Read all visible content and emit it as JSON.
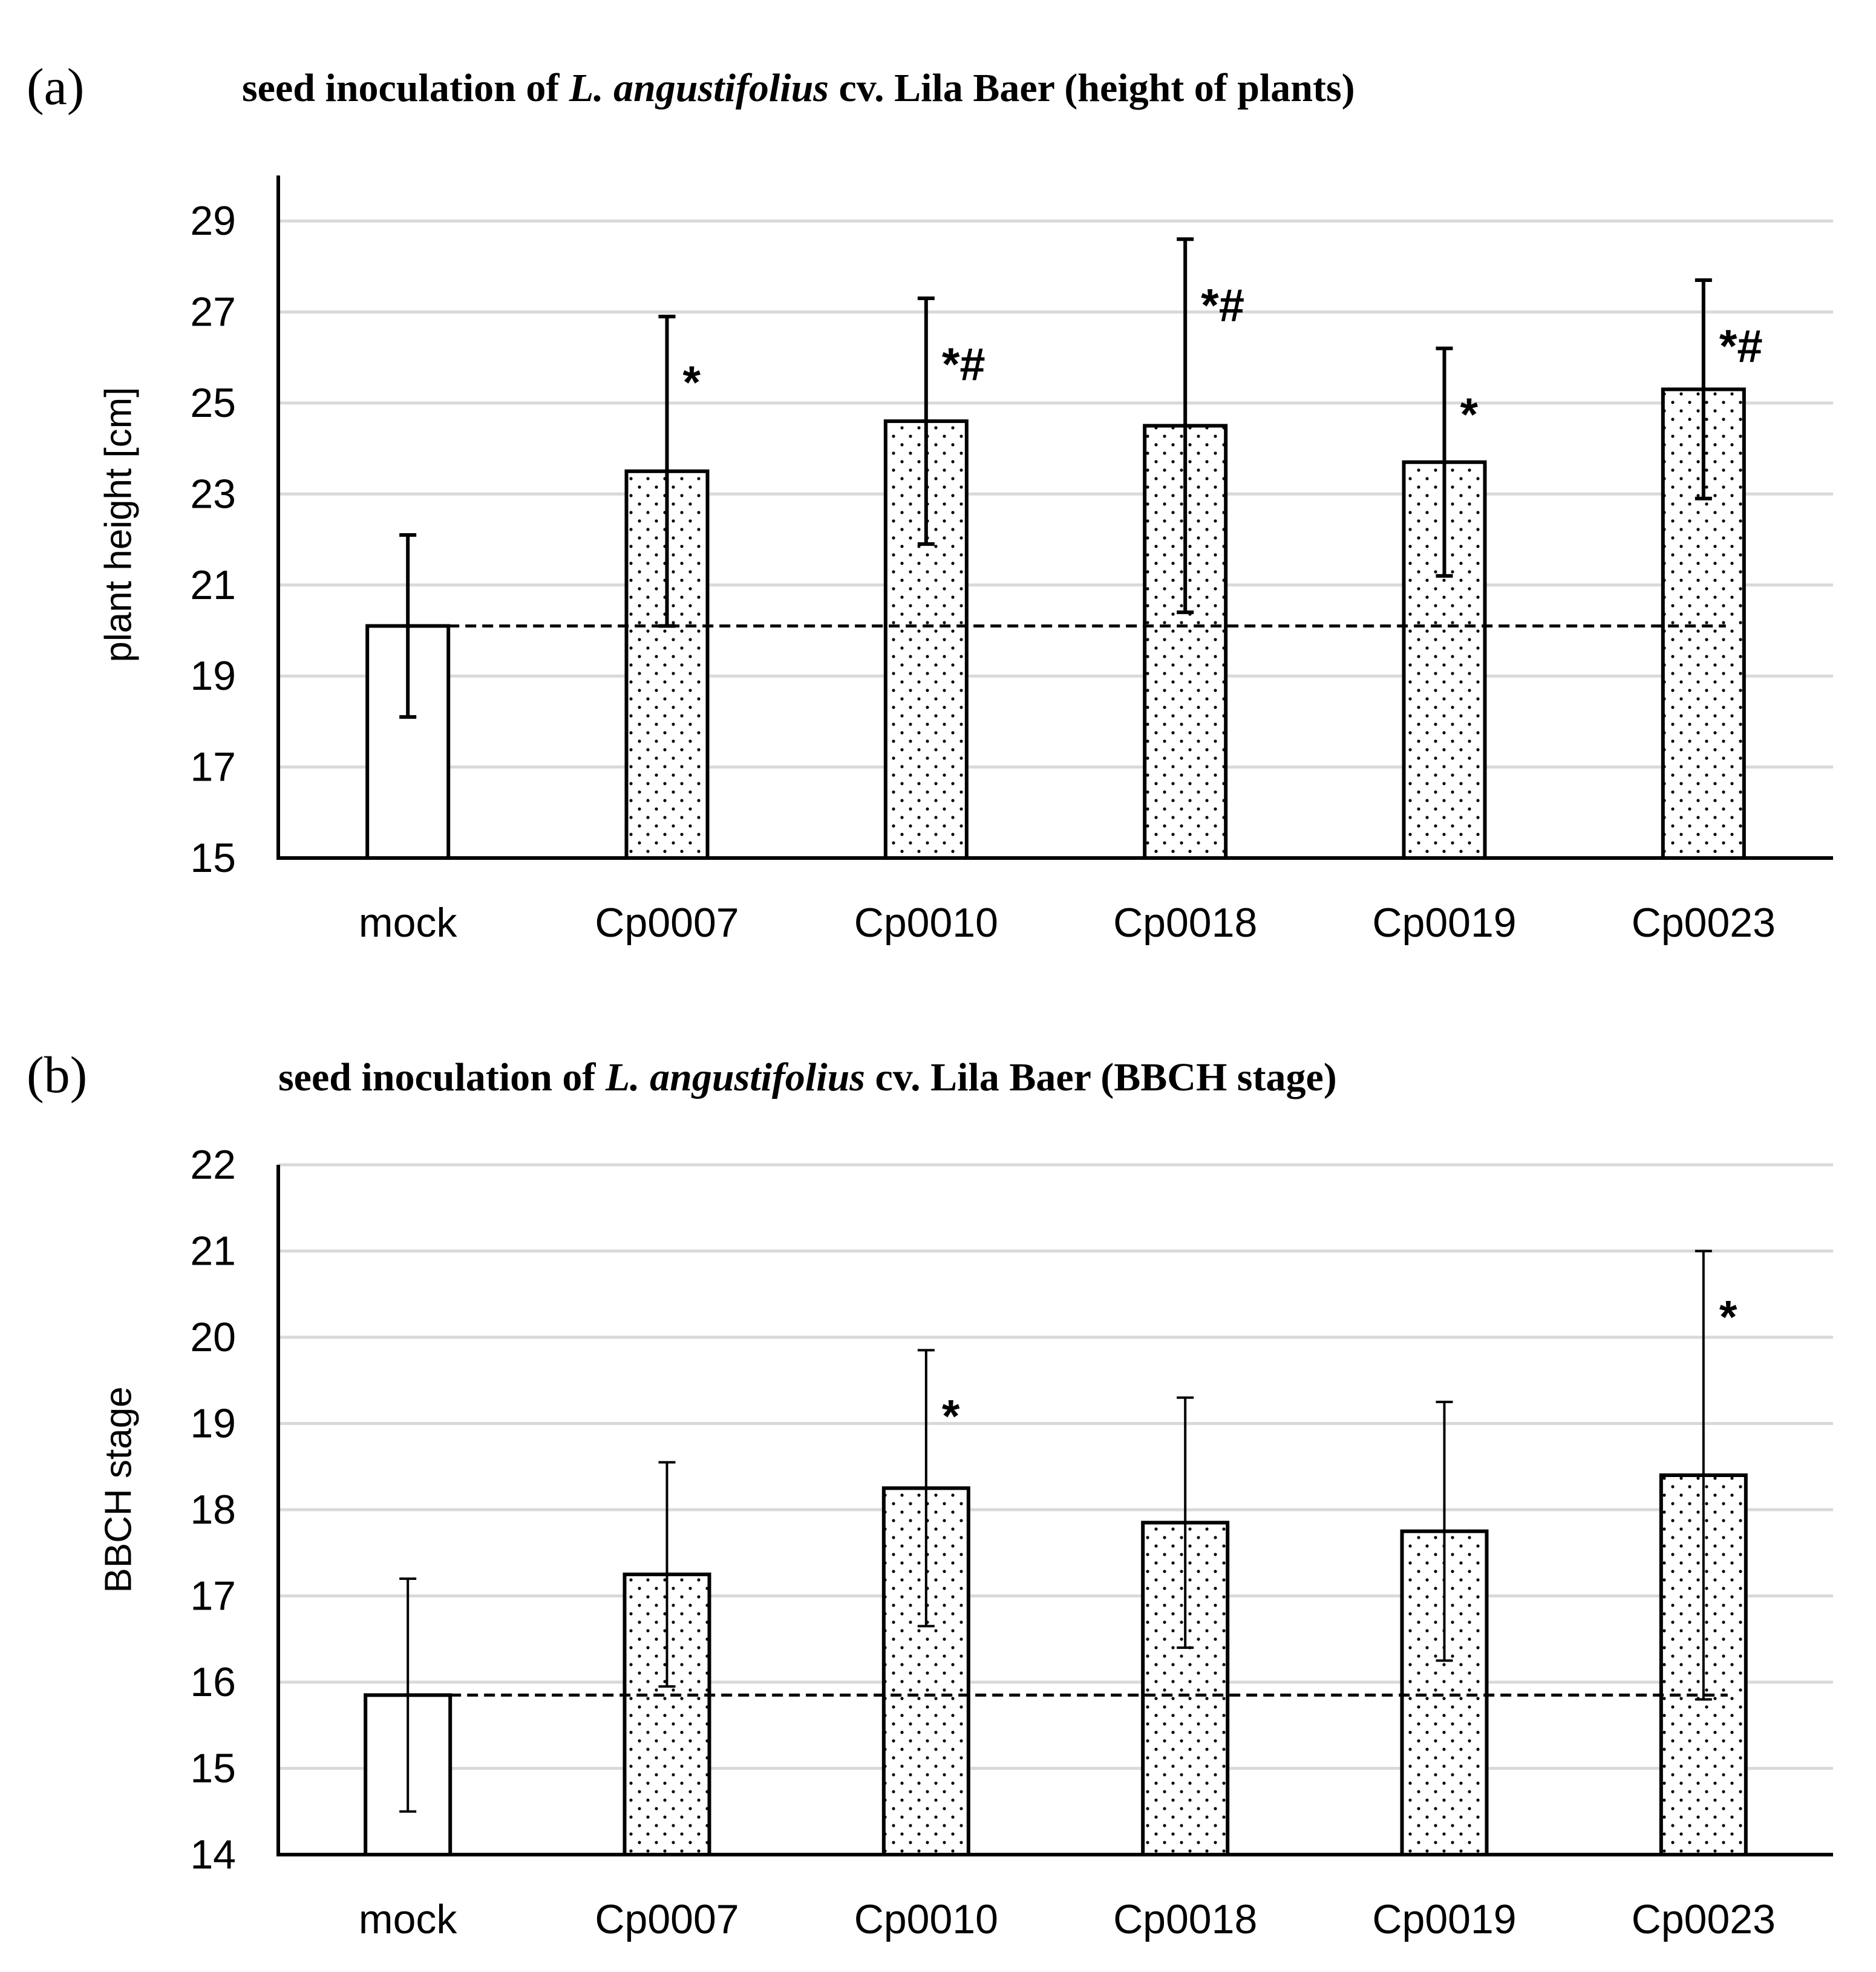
{
  "colors": {
    "axis": "#000000",
    "grid": "#d9d9d9",
    "bar_fill": "#ffffff",
    "bar_stroke": "#000000",
    "dots": "#000000"
  },
  "chart_data": [
    {
      "type": "bar",
      "panel_label": "(a)",
      "title": {
        "prefix": "seed inoculation of ",
        "italic": "L. angustifolius",
        "suffix": "  cv. Lila Baer (height of plants)"
      },
      "xlabel": "",
      "ylabel": "plant height [cm]",
      "ylim": [
        15,
        30
      ],
      "yticks": [
        15,
        17,
        19,
        21,
        23,
        25,
        27,
        29
      ],
      "grid": true,
      "categories": [
        "mock",
        "Cp0007",
        "Cp0010",
        "Cp0018",
        "Cp0019",
        "Cp0023"
      ],
      "values": [
        20.1,
        23.5,
        24.6,
        24.5,
        23.7,
        25.3
      ],
      "error": [
        2.0,
        3.4,
        2.7,
        4.1,
        2.5,
        2.4
      ],
      "patterned": [
        false,
        true,
        true,
        true,
        true,
        true
      ],
      "significance": [
        "",
        "*",
        "*#",
        "*#",
        "*",
        "*#"
      ],
      "reference_line": 20.1
    },
    {
      "type": "bar",
      "panel_label": "(b)",
      "title": {
        "prefix": "seed inoculation of ",
        "italic": "L. angustifolius",
        "suffix": "  cv. Lila Baer  (BBCH stage)"
      },
      "xlabel": "",
      "ylabel": "BBCH stage",
      "ylim": [
        14,
        22
      ],
      "yticks": [
        14,
        15,
        16,
        17,
        18,
        19,
        20,
        21,
        22
      ],
      "grid": true,
      "categories": [
        "mock",
        "Cp0007",
        "Cp0010",
        "Cp0018",
        "Cp0019",
        "Cp0023"
      ],
      "values": [
        15.85,
        17.25,
        18.25,
        17.85,
        17.75,
        18.4
      ],
      "error": [
        1.35,
        1.3,
        1.6,
        1.45,
        1.5,
        2.6
      ],
      "patterned": [
        false,
        true,
        true,
        true,
        true,
        true
      ],
      "significance": [
        "",
        "",
        "*",
        "",
        "",
        "*"
      ],
      "reference_line": 15.85
    }
  ]
}
